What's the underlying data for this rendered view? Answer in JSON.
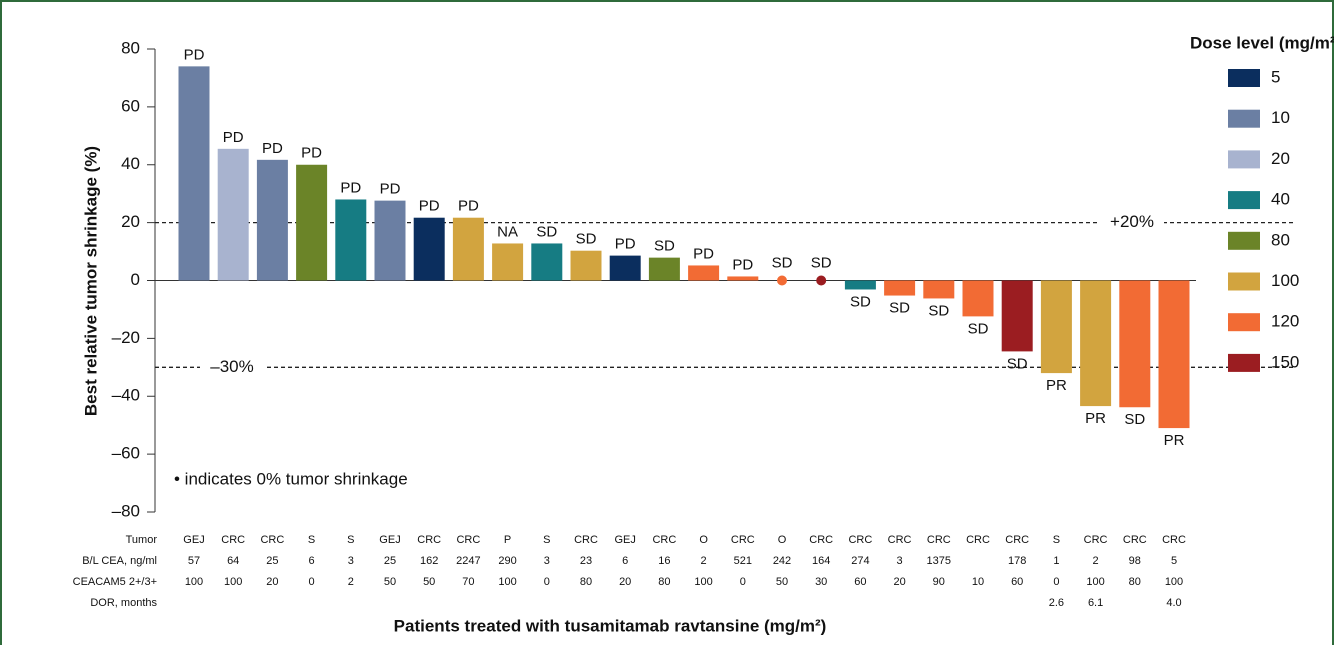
{
  "chart_data": {
    "type": "waterfall",
    "y_label": "Best relative tumor shrinkage (%)",
    "x_label": "Patients treated with tusamitamab ravtansine (mg/m²)",
    "annotation": "• indicates 0% tumor shrinkage",
    "ylim": [
      -80,
      80
    ],
    "yticks": [
      {
        "value": -80,
        "label": "–80"
      },
      {
        "value": -60,
        "label": "–60"
      },
      {
        "value": -40,
        "label": "–40"
      },
      {
        "value": -20,
        "label": "–20"
      },
      0,
      20,
      40,
      60,
      80
    ],
    "reference_lines": [
      {
        "value": 20,
        "label": "+20%"
      },
      {
        "value": -30,
        "label": "–30%"
      }
    ],
    "values": [
      74,
      45.5,
      41.7,
      40,
      28,
      27.6,
      21.7,
      21.7,
      12.8,
      12.8,
      10.3,
      8.6,
      7.9,
      5.2,
      1.4,
      0,
      0,
      -3.1,
      -5.2,
      -6.2,
      -12.4,
      -24.5,
      -32,
      -43.4,
      -43.8,
      -51
    ],
    "dose": [
      "10",
      "20",
      "10",
      "80",
      "40",
      "10",
      "5",
      "100",
      "100",
      "40",
      "100",
      "5",
      "80",
      "120",
      "120",
      "120",
      "150",
      "40",
      "120",
      "120",
      "120",
      "150",
      "100",
      "100",
      "120",
      "120"
    ],
    "responses": [
      "PD",
      "PD",
      "PD",
      "PD",
      "PD",
      "PD",
      "PD",
      "PD",
      "NA",
      "SD",
      "SD",
      "PD",
      "SD",
      "PD",
      "PD",
      "SD",
      "SD",
      "SD",
      "SD",
      "SD",
      "SD",
      "SD",
      "PR",
      "PR",
      "SD",
      "PR"
    ],
    "legend": {
      "title": "Dose level (mg/m²)",
      "items": [
        {
          "name": "5",
          "color": "#0b2e5e"
        },
        {
          "name": "10",
          "color": "#6b7fa3"
        },
        {
          "name": "20",
          "color": "#a8b3cf"
        },
        {
          "name": "40",
          "color": "#167c83"
        },
        {
          "name": "80",
          "color": "#6b8428"
        },
        {
          "name": "100",
          "color": "#d2a43f"
        },
        {
          "name": "120",
          "color": "#f26b34"
        },
        {
          "name": "150",
          "color": "#9b1d21"
        }
      ]
    },
    "table": {
      "row_labels": [
        "Tumor",
        "B/L CEA, ng/ml",
        "CEACAM5 2+/3+",
        "DOR, months"
      ],
      "rows": [
        [
          "GEJ",
          "CRC",
          "CRC",
          "S",
          "S",
          "GEJ",
          "CRC",
          "CRC",
          "P",
          "S",
          "CRC",
          "GEJ",
          "CRC",
          "O",
          "CRC",
          "O",
          "CRC",
          "CRC",
          "CRC",
          "CRC",
          "CRC",
          "CRC",
          "S",
          "CRC",
          "CRC",
          "CRC"
        ],
        [
          57,
          64,
          25,
          6,
          3,
          25,
          162,
          2247,
          290,
          3,
          23,
          6,
          16,
          2,
          521,
          242,
          164,
          274,
          3,
          1375,
          null,
          178,
          1,
          2,
          98,
          5
        ],
        [
          100,
          100,
          20,
          0,
          2,
          50,
          50,
          70,
          100,
          0,
          80,
          20,
          80,
          100,
          0,
          50,
          30,
          60,
          20,
          90,
          10,
          60,
          0,
          100,
          80,
          100
        ],
        [
          null,
          null,
          null,
          null,
          null,
          null,
          null,
          null,
          null,
          null,
          null,
          null,
          null,
          null,
          null,
          null,
          null,
          null,
          null,
          null,
          null,
          null,
          "2.6",
          "6.1",
          null,
          "4.0"
        ]
      ]
    }
  }
}
